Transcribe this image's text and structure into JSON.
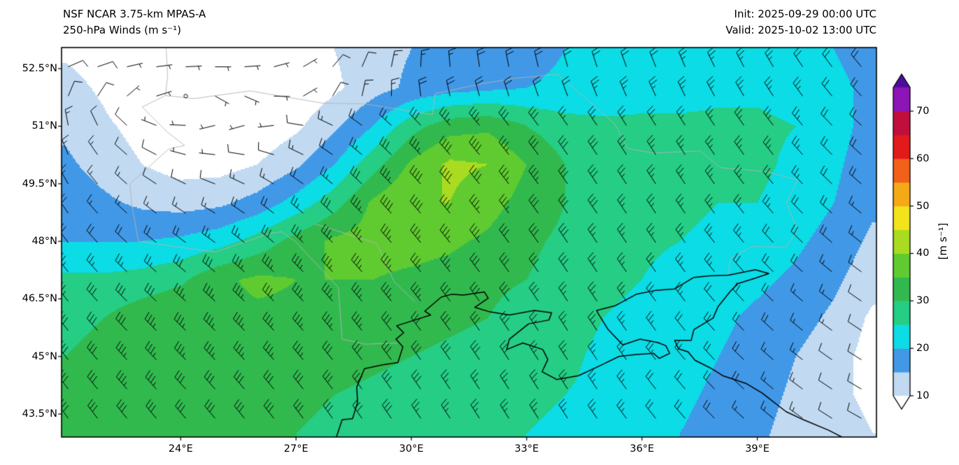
{
  "header": {
    "title_line1": "NSF NCAR 3.75-km MPAS-A",
    "title_line2": "250-hPa Winds (m s⁻¹)",
    "init_label": "Init: 2025-09-29 00:00 UTC",
    "valid_label": "Valid: 2025-10-02 13:00 UTC"
  },
  "chart_data": {
    "type": "heatmap",
    "subtype": "filled-contour wind speed map with wind barbs over the Black Sea / Ukraine region",
    "title": "NSF NCAR 3.75-km MPAS-A 250-hPa Winds (m s⁻¹)",
    "units": "m s⁻¹",
    "extent": {
      "lon_min": 20.9,
      "lon_max": 42.1,
      "lat_min": 42.9,
      "lat_max": 53.05
    },
    "x_ticks": [
      {
        "value": 24,
        "label": "24°E"
      },
      {
        "value": 27,
        "label": "27°E"
      },
      {
        "value": 30,
        "label": "30°E"
      },
      {
        "value": 33,
        "label": "33°E"
      },
      {
        "value": 36,
        "label": "36°E"
      },
      {
        "value": 39,
        "label": "39°E"
      }
    ],
    "y_ticks": [
      {
        "value": 52.5,
        "label": "52.5°N"
      },
      {
        "value": 51,
        "label": "51°N"
      },
      {
        "value": 49.5,
        "label": "49.5°N"
      },
      {
        "value": 48,
        "label": "48°N"
      },
      {
        "value": 46.5,
        "label": "46.5°N"
      },
      {
        "value": 45,
        "label": "45°N"
      },
      {
        "value": 43.5,
        "label": "43.5°N"
      }
    ],
    "colorbar": {
      "label": "[m s⁻¹]",
      "ticks": [
        10,
        20,
        30,
        40,
        50,
        60,
        70
      ],
      "levels": [
        10,
        15,
        20,
        25,
        30,
        35,
        40,
        45,
        50,
        55,
        60,
        65,
        70,
        75
      ],
      "colors": [
        "#c1daf2",
        "#4198e6",
        "#0bdce6",
        "#25cd85",
        "#31b94e",
        "#5fcb30",
        "#a9dc20",
        "#f2e31b",
        "#f6a916",
        "#f2601a",
        "#e31a1a",
        "#c00f3c",
        "#8d14b5"
      ],
      "under_color": "#ffffff",
      "over_color": "#4e0c9c"
    },
    "wind": {
      "barb_convention": {
        "half_barb": 5,
        "full_barb": 10,
        "pennant": 50
      },
      "grid_lons": [
        21,
        22,
        23,
        24,
        25,
        26,
        27,
        28,
        29,
        30,
        31,
        32,
        33,
        34,
        35,
        36,
        37,
        38,
        39,
        40,
        41,
        42
      ],
      "grid_lats": [
        53,
        52,
        51,
        50,
        49,
        48,
        47,
        46,
        45,
        44,
        43
      ],
      "speed_grid": [
        [
          9,
          7,
          5,
          4,
          4,
          5,
          7,
          10,
          13,
          15,
          16,
          17,
          18,
          20,
          21,
          22,
          22,
          23,
          23,
          22,
          20,
          18
        ],
        [
          12,
          9,
          4,
          1,
          2,
          4,
          6,
          9,
          13,
          16,
          18,
          19,
          20,
          21,
          22,
          23,
          23,
          24,
          24,
          23,
          21,
          19
        ],
        [
          14,
          11,
          8,
          6,
          5,
          6,
          9,
          14,
          20,
          28,
          33,
          34,
          30,
          27,
          26,
          26,
          26,
          26,
          26,
          25,
          22,
          18
        ],
        [
          16,
          13,
          10,
          8,
          8,
          10,
          14,
          20,
          28,
          36,
          41,
          40,
          35,
          30,
          28,
          27,
          26,
          26,
          26,
          24,
          21,
          17
        ],
        [
          18,
          16,
          14,
          13,
          14,
          17,
          22,
          28,
          36,
          40,
          40,
          37,
          33,
          30,
          28,
          27,
          26,
          25,
          25,
          23,
          20,
          16
        ],
        [
          20,
          20,
          20,
          21,
          23,
          27,
          32,
          36,
          37,
          37,
          36,
          34,
          31,
          29,
          27,
          26,
          25,
          24,
          23,
          21,
          18,
          14
        ],
        [
          26,
          26,
          27,
          29,
          34,
          36,
          35,
          35,
          35,
          34,
          33,
          31,
          30,
          28,
          26,
          25,
          23,
          22,
          21,
          19,
          16,
          12
        ],
        [
          28,
          30,
          33,
          35,
          34,
          34,
          34,
          34,
          33,
          32,
          31,
          30,
          28,
          27,
          25,
          24,
          23,
          21,
          19,
          17,
          14,
          9
        ],
        [
          30,
          32,
          34,
          35,
          33,
          33,
          33,
          32,
          31,
          30,
          29,
          28,
          27,
          26,
          24,
          23,
          22,
          20,
          18,
          15,
          12,
          8
        ],
        [
          30,
          32,
          33,
          32,
          32,
          32,
          31,
          30,
          29,
          28,
          27,
          26,
          26,
          25,
          24,
          22,
          21,
          19,
          17,
          14,
          11,
          9
        ],
        [
          30,
          31,
          31,
          31,
          31,
          30,
          30,
          29,
          28,
          27,
          26,
          25,
          25,
          24,
          23,
          22,
          20,
          18,
          16,
          13,
          12,
          10
        ]
      ],
      "direction_from_deg_grid": [
        [
          95,
          90,
          85,
          80,
          75,
          70,
          55,
          35,
          15,
          5,
          355,
          350,
          348,
          345,
          342,
          340,
          338,
          335,
          332,
          328,
          324,
          320
        ],
        [
          30,
          50,
          75,
          95,
          110,
          100,
          75,
          45,
          20,
          5,
          355,
          350,
          347,
          344,
          341,
          338,
          336,
          333,
          330,
          326,
          322,
          318
        ],
        [
          350,
          330,
          300,
          275,
          255,
          255,
          275,
          295,
          308,
          315,
          318,
          320,
          322,
          324,
          326,
          328,
          328,
          326,
          324,
          320,
          316,
          312
        ],
        [
          335,
          320,
          305,
          290,
          282,
          290,
          300,
          308,
          313,
          316,
          319,
          321,
          323,
          325,
          327,
          328,
          327,
          325,
          323,
          319,
          315,
          311
        ],
        [
          328,
          318,
          310,
          303,
          300,
          304,
          309,
          313,
          316,
          318,
          320,
          322,
          324,
          325,
          326,
          327,
          326,
          324,
          321,
          317,
          313,
          309
        ],
        [
          324,
          317,
          311,
          307,
          306,
          309,
          313,
          316,
          318,
          320,
          321,
          323,
          324,
          326,
          326,
          326,
          325,
          322,
          319,
          315,
          311,
          307
        ],
        [
          322,
          317,
          313,
          311,
          311,
          313,
          316,
          318,
          320,
          321,
          323,
          324,
          325,
          326,
          326,
          325,
          323,
          321,
          317,
          313,
          309,
          305
        ],
        [
          321,
          318,
          315,
          314,
          314,
          316,
          318,
          320,
          321,
          323,
          324,
          325,
          326,
          327,
          326,
          325,
          322,
          319,
          315,
          311,
          307,
          303
        ],
        [
          322,
          319,
          317,
          316,
          317,
          318,
          320,
          321,
          323,
          324,
          325,
          326,
          327,
          327,
          326,
          324,
          321,
          317,
          313,
          309,
          305,
          301
        ],
        [
          323,
          321,
          319,
          318,
          319,
          320,
          322,
          323,
          324,
          325,
          326,
          327,
          328,
          328,
          326,
          323,
          320,
          316,
          312,
          307,
          303,
          299
        ],
        [
          325,
          323,
          321,
          321,
          321,
          322,
          324,
          325,
          326,
          326,
          327,
          328,
          328,
          327,
          325,
          322,
          319,
          315,
          311,
          306,
          302,
          298
        ]
      ]
    },
    "coastlines": [
      [
        [
          28.05,
          42.9
        ],
        [
          28.2,
          43.35
        ],
        [
          28.47,
          43.38
        ],
        [
          28.6,
          43.8
        ],
        [
          28.58,
          44.2
        ],
        [
          28.78,
          44.68
        ],
        [
          29.25,
          44.78
        ],
        [
          29.65,
          44.84
        ],
        [
          29.78,
          45.25
        ],
        [
          29.6,
          45.45
        ],
        [
          29.8,
          45.62
        ],
        [
          29.62,
          45.8
        ],
        [
          30.25,
          46.0
        ],
        [
          30.5,
          46.08
        ],
        [
          30.35,
          46.18
        ],
        [
          30.78,
          46.55
        ],
        [
          31.05,
          46.62
        ],
        [
          31.35,
          46.6
        ],
        [
          31.9,
          46.68
        ],
        [
          32.0,
          46.52
        ],
        [
          31.65,
          46.28
        ],
        [
          32.05,
          46.16
        ],
        [
          32.55,
          46.08
        ],
        [
          33.2,
          46.2
        ],
        [
          33.65,
          46.14
        ],
        [
          33.58,
          45.95
        ],
        [
          33.05,
          45.85
        ],
        [
          32.55,
          45.45
        ],
        [
          32.48,
          45.18
        ],
        [
          32.9,
          45.35
        ],
        [
          33.42,
          45.18
        ],
        [
          33.55,
          44.92
        ],
        [
          33.4,
          44.6
        ],
        [
          33.78,
          44.4
        ],
        [
          34.35,
          44.5
        ],
        [
          34.95,
          44.78
        ],
        [
          35.4,
          45.0
        ],
        [
          35.85,
          45.05
        ],
        [
          36.3,
          45.08
        ],
        [
          36.45,
          44.95
        ],
        [
          36.72,
          45.08
        ],
        [
          36.62,
          45.28
        ],
        [
          36.42,
          45.36
        ],
        [
          35.95,
          45.45
        ],
        [
          35.5,
          45.3
        ],
        [
          35.12,
          45.7
        ],
        [
          34.86,
          46.12
        ],
        [
          34.82,
          46.2
        ],
        [
          35.3,
          46.32
        ],
        [
          35.85,
          46.62
        ],
        [
          36.35,
          46.72
        ],
        [
          36.85,
          46.76
        ],
        [
          37.35,
          47.06
        ],
        [
          37.75,
          47.1
        ],
        [
          38.25,
          47.12
        ],
        [
          38.95,
          47.26
        ],
        [
          39.3,
          47.16
        ],
        [
          38.95,
          47.04
        ],
        [
          38.5,
          46.9
        ],
        [
          38.3,
          46.7
        ],
        [
          37.98,
          46.3
        ],
        [
          37.85,
          46.0
        ],
        [
          37.35,
          45.7
        ],
        [
          37.28,
          45.42
        ],
        [
          36.85,
          45.42
        ],
        [
          36.95,
          45.2
        ],
        [
          37.2,
          45.12
        ],
        [
          37.38,
          44.9
        ],
        [
          37.78,
          44.7
        ],
        [
          38.1,
          44.5
        ],
        [
          38.7,
          44.3
        ],
        [
          39.12,
          44.05
        ],
        [
          39.75,
          43.56
        ],
        [
          40.2,
          43.35
        ],
        [
          40.85,
          43.08
        ],
        [
          41.3,
          42.85
        ]
      ]
    ],
    "borders": [
      [
        [
          23.62,
          53.05
        ],
        [
          23.66,
          52.3
        ],
        [
          23.6,
          51.8
        ],
        [
          24.35,
          51.72
        ],
        [
          25.8,
          51.92
        ],
        [
          27.7,
          51.6
        ],
        [
          28.8,
          51.58
        ],
        [
          30.55,
          51.3
        ],
        [
          30.62,
          51.85
        ],
        [
          31.8,
          52.1
        ],
        [
          32.7,
          52.25
        ],
        [
          33.8,
          52.35
        ],
        [
          34.45,
          51.8
        ],
        [
          35.3,
          51.05
        ],
        [
          35.62,
          50.42
        ],
        [
          36.3,
          50.3
        ],
        [
          37.5,
          50.36
        ],
        [
          38.05,
          49.92
        ],
        [
          39.2,
          49.82
        ],
        [
          40.05,
          49.6
        ],
        [
          39.75,
          49.0
        ],
        [
          40.05,
          48.3
        ],
        [
          39.75,
          47.85
        ],
        [
          38.85,
          47.86
        ],
        [
          38.3,
          47.55
        ],
        [
          38.25,
          47.12
        ]
      ],
      [
        [
          23.6,
          51.8
        ],
        [
          23.0,
          51.5
        ],
        [
          23.65,
          50.85
        ],
        [
          24.1,
          50.5
        ],
        [
          23.68,
          50.4
        ],
        [
          22.68,
          49.5
        ],
        [
          22.72,
          49.0
        ],
        [
          22.9,
          48.0
        ],
        [
          24.9,
          47.72
        ],
        [
          26.3,
          48.2
        ],
        [
          26.62,
          48.25
        ]
      ],
      [
        [
          26.62,
          48.25
        ],
        [
          26.98,
          48.0
        ],
        [
          28.1,
          46.8
        ],
        [
          28.2,
          45.45
        ],
        [
          28.8,
          45.32
        ],
        [
          29.65,
          45.35
        ]
      ],
      [
        [
          27.5,
          48.45
        ],
        [
          29.1,
          47.95
        ],
        [
          29.55,
          46.95
        ],
        [
          30.1,
          46.42
        ]
      ]
    ]
  }
}
